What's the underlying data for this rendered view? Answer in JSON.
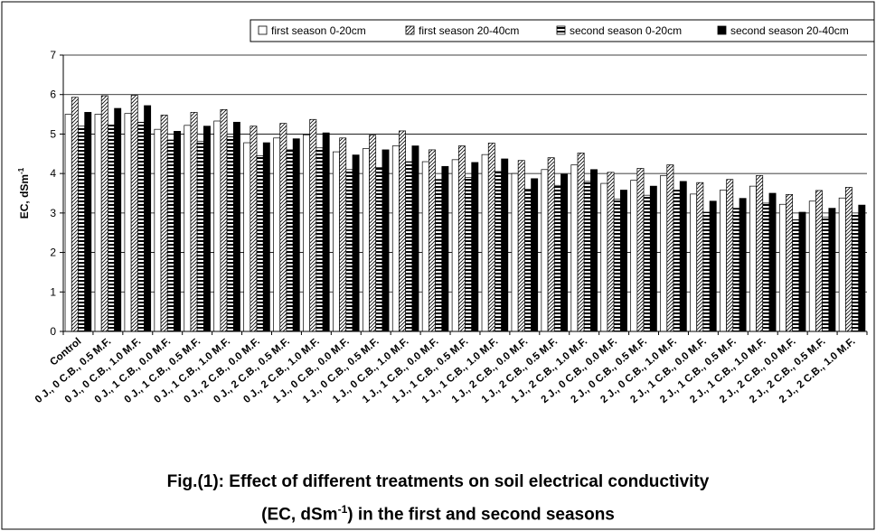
{
  "chart_data": {
    "type": "bar",
    "ylabel": "EC, dSm",
    "ylabel_sup": "-1",
    "ylim": [
      0,
      7
    ],
    "yticks": [
      0,
      1,
      2,
      3,
      4,
      5,
      6,
      7
    ],
    "grid": true,
    "legend_position": "top",
    "categories": [
      "Control",
      "0 J., 0 C.B., 0.5 M.F.",
      "0 J., 0 C.B., 1.0 M.F.",
      "0 J., 1 C.B., 0.0 M.F.",
      "0 J., 1 C.B., 0.5 M.F.",
      "0 J., 1 C.B., 1.0 M.F.",
      "0 J., 2 C.B., 0.0 M.F.",
      "0 J., 2 C.B., 0.5 M.F.",
      "0 J., 2 C.B., 1.0 M.F.",
      "1 J., 0 C.B., 0.0 M.F.",
      "1 J., 0 C.B., 0.5 M.F.",
      "1 J., 0 C.B., 1.0 M.F.",
      "1 J., 1 C.B., 0.0 M.F.",
      "1 J., 1 C.B., 0.5 M.F.",
      "1 J., 1 C.B., 1.0 M.F.",
      "1 J., 2 C.B., 0.0 M.F.",
      "1 J., 2 C.B., 0.5 M.F.",
      "1 J., 2 C.B., 1.0 M.F.",
      "2 J., 0 C.B., 0.0 M.F.",
      "2 J., 0 C.B., 0.5 M.F.",
      "2 J., 0 C.B., 1.0 M.F.",
      "2 J., 1 C.B., 0.0 M.F.",
      "2 J., 1 C.B., 0.5 M.F.",
      "2 J., 1 C.B., 1.0 M.F.",
      "2 J., 2 C.B., 0.0 M.F.",
      "2 J., 2 C.B., 0.5 M.F.",
      "2 J., 2 C.B., 1.0 M.F."
    ],
    "series": [
      {
        "name": "first season 0-20cm",
        "pattern": "white",
        "values": [
          5.5,
          5.5,
          5.52,
          5.12,
          5.22,
          5.33,
          4.78,
          4.9,
          4.98,
          4.55,
          4.63,
          4.7,
          4.3,
          4.35,
          4.48,
          4.0,
          4.1,
          4.22,
          3.75,
          3.83,
          3.95,
          3.48,
          3.58,
          3.68,
          3.22,
          3.3,
          3.38
        ]
      },
      {
        "name": "first season 20-40cm",
        "pattern": "hatch",
        "values": [
          5.93,
          5.97,
          5.98,
          5.48,
          5.55,
          5.62,
          5.2,
          5.27,
          5.37,
          4.9,
          4.97,
          5.08,
          4.6,
          4.7,
          4.77,
          4.33,
          4.4,
          4.52,
          4.03,
          4.13,
          4.22,
          3.77,
          3.85,
          3.95,
          3.47,
          3.57,
          3.65
        ]
      },
      {
        "name": "second season 0-20cm",
        "pattern": "stripes",
        "values": [
          5.2,
          5.23,
          5.3,
          4.85,
          4.82,
          4.93,
          4.45,
          4.6,
          4.65,
          4.1,
          4.15,
          4.3,
          3.85,
          3.9,
          4.05,
          3.6,
          3.7,
          3.8,
          3.35,
          3.45,
          3.58,
          3.02,
          3.12,
          3.25,
          2.83,
          2.9,
          3.0
        ]
      },
      {
        "name": "second season 20-40cm",
        "pattern": "black",
        "values": [
          5.55,
          5.65,
          5.72,
          5.07,
          5.2,
          5.3,
          4.78,
          4.88,
          5.03,
          4.47,
          4.6,
          4.7,
          4.18,
          4.28,
          4.37,
          3.87,
          3.98,
          4.1,
          3.58,
          3.68,
          3.8,
          3.3,
          3.37,
          3.5,
          3.02,
          3.12,
          3.2
        ]
      }
    ]
  },
  "caption": {
    "line1": "Fig.(1): Effect of different treatments on soil electrical conductivity",
    "line2_pre": "(EC, dSm",
    "line2_sup": "-1",
    "line2_post": ") in the first and second seasons"
  }
}
